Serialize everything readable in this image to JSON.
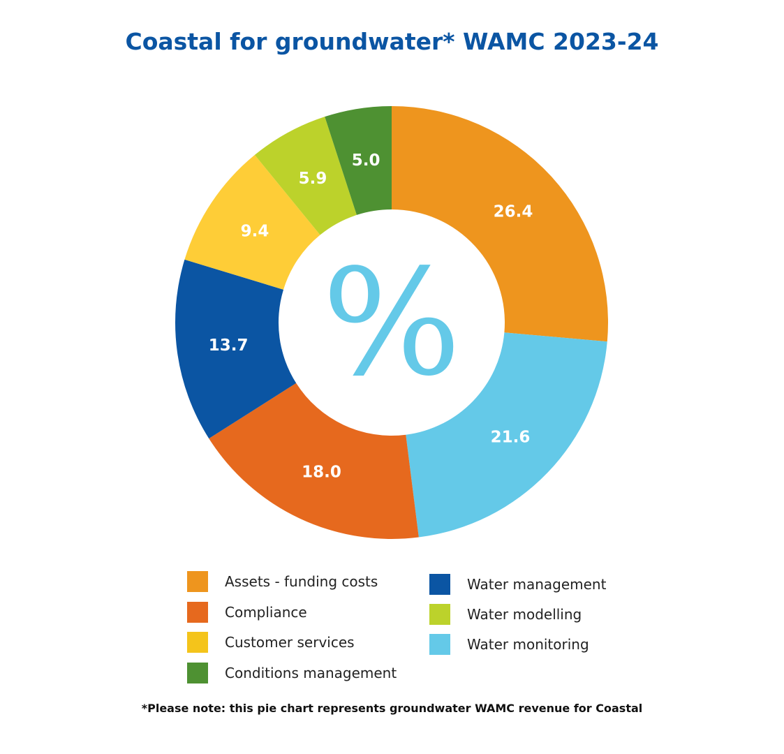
{
  "chart_data": {
    "type": "pie",
    "variant": "donut",
    "title": "Coastal for groundwater* WAMC 2023-24",
    "center_symbol": "%",
    "categories": [
      "Assets - funding costs",
      "Water monitoring",
      "Compliance",
      "Water management",
      "Customer services",
      "Water modelling",
      "Conditions management"
    ],
    "values": [
      26.4,
      21.6,
      18.0,
      13.7,
      9.4,
      5.9,
      5.0
    ],
    "value_labels": [
      "26.4",
      "21.6",
      "18.0",
      "13.7",
      "9.4",
      "5.9",
      "5.0"
    ],
    "colors": [
      "#ee951e",
      "#64c9e8",
      "#e6691e",
      "#0b55a3",
      "#fecd37",
      "#bcd22b",
      "#4e9132"
    ],
    "legend": {
      "placement": "bottom",
      "columns": [
        [
          {
            "label": "Assets - funding costs",
            "color": "#ee951e"
          },
          {
            "label": "Compliance",
            "color": "#e6691e"
          },
          {
            "label": "Customer services",
            "color": "#f4c41b"
          },
          {
            "label": "Conditions management",
            "color": "#4e9132"
          }
        ],
        [
          {
            "label": "Water management",
            "color": "#0b55a3"
          },
          {
            "label": "Water modelling",
            "color": "#bcd22b"
          },
          {
            "label": "Water monitoring",
            "color": "#64c9e8"
          }
        ]
      ]
    },
    "note": "*Please note: this pie chart represents groundwater WAMC revenue for Coastal"
  },
  "colors": {
    "title": "#0b55a3",
    "center_symbol": "#64c9e8"
  }
}
